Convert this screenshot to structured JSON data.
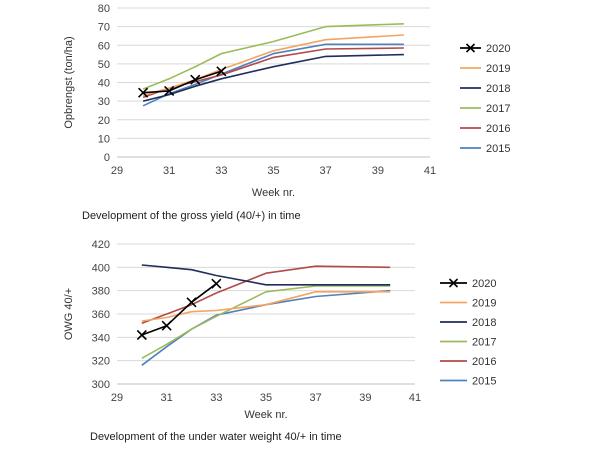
{
  "chart_data": [
    {
      "type": "line",
      "caption": "Development of the gross yield (40/+) in time",
      "xlabel": "Week nr.",
      "ylabel": "Opbrengst (ton/ha)",
      "xlim": [
        29,
        41
      ],
      "ylim": [
        0,
        80
      ],
      "xticks": [
        29,
        31,
        33,
        35,
        37,
        39,
        41
      ],
      "yticks": [
        0,
        10,
        20,
        30,
        40,
        50,
        60,
        70,
        80
      ],
      "grid": true,
      "legend_position": "right",
      "series": [
        {
          "name": "2020",
          "color": "#000000",
          "marker": "x",
          "x": [
            30,
            31,
            32,
            33
          ],
          "y": [
            34.5,
            35.5,
            41.5,
            46
          ]
        },
        {
          "name": "2019",
          "color": "#f4a460",
          "marker": "none",
          "x": [
            30,
            31,
            32,
            33,
            35,
            37,
            40
          ],
          "y": [
            33,
            37,
            41.5,
            47,
            57,
            63,
            65.5
          ]
        },
        {
          "name": "2018",
          "color": "#1f2d5c",
          "marker": "none",
          "x": [
            30,
            31,
            32,
            33,
            35,
            37,
            40
          ],
          "y": [
            30,
            33.5,
            38,
            42,
            48.5,
            54,
            55
          ]
        },
        {
          "name": "2017",
          "color": "#9bbb59",
          "marker": "none",
          "x": [
            30,
            31,
            32,
            33,
            35,
            37,
            40
          ],
          "y": [
            36.5,
            42,
            48.5,
            55.5,
            62,
            70,
            71.5
          ]
        },
        {
          "name": "2016",
          "color": "#b24a4a",
          "marker": "none",
          "x": [
            30,
            31,
            32,
            33,
            35,
            37,
            40
          ],
          "y": [
            32,
            37,
            40.5,
            44,
            53.5,
            58,
            58.5
          ]
        },
        {
          "name": "2015",
          "color": "#4f81bd",
          "marker": "none",
          "x": [
            30,
            31,
            32,
            33,
            35,
            37,
            40
          ],
          "y": [
            27.5,
            34,
            39,
            44.5,
            55.5,
            60.5,
            60.5
          ]
        }
      ]
    },
    {
      "type": "line",
      "caption": "Development of the under water weight 40/+ in time",
      "xlabel": "Week nr.",
      "ylabel": "OWG 40/+",
      "xlim": [
        29,
        41
      ],
      "ylim": [
        300,
        420
      ],
      "xticks": [
        29,
        31,
        33,
        35,
        37,
        39,
        41
      ],
      "yticks": [
        300,
        320,
        340,
        360,
        380,
        400,
        420
      ],
      "grid": true,
      "legend_position": "right",
      "series": [
        {
          "name": "2020",
          "color": "#000000",
          "marker": "x",
          "x": [
            30,
            31,
            32,
            33
          ],
          "y": [
            342,
            350,
            370,
            386
          ]
        },
        {
          "name": "2019",
          "color": "#f4a460",
          "marker": "none",
          "x": [
            30,
            31,
            32,
            33,
            35,
            37,
            40
          ],
          "y": [
            354,
            357,
            362,
            363,
            368,
            379,
            379
          ]
        },
        {
          "name": "2018",
          "color": "#1f2d5c",
          "marker": "none",
          "x": [
            30,
            31,
            32,
            33,
            35,
            37,
            40
          ],
          "y": [
            402,
            400,
            398,
            393,
            385,
            385,
            385
          ]
        },
        {
          "name": "2017",
          "color": "#9bbb59",
          "marker": "none",
          "x": [
            30,
            31,
            32,
            33,
            35,
            37,
            40
          ],
          "y": [
            322,
            334,
            347,
            358,
            379,
            384,
            384
          ]
        },
        {
          "name": "2016",
          "color": "#b24a4a",
          "marker": "none",
          "x": [
            30,
            31,
            32,
            33,
            35,
            37,
            40
          ],
          "y": [
            352,
            360,
            368,
            378,
            395,
            401,
            400
          ]
        },
        {
          "name": "2015",
          "color": "#4f81bd",
          "marker": "none",
          "x": [
            30,
            31,
            32,
            33,
            35,
            37,
            40
          ],
          "y": [
            316,
            332,
            347,
            359,
            368,
            375,
            380
          ]
        }
      ]
    }
  ]
}
